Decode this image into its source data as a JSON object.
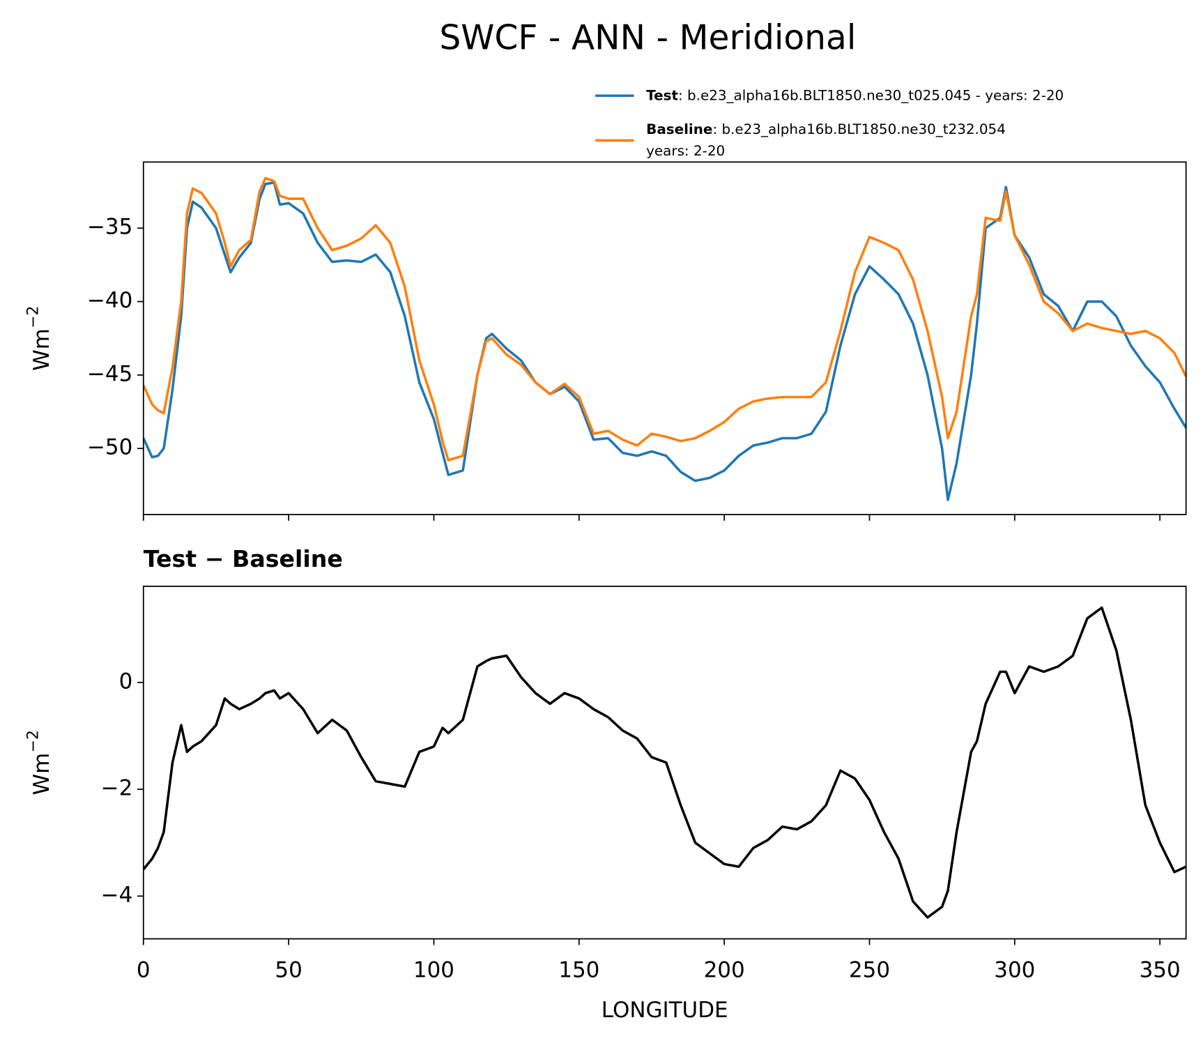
{
  "title": "SWCF - ANN - Meridional",
  "chart_data": [
    {
      "type": "line",
      "ylabel": "Wm",
      "ylabel_sup": "−2",
      "x": [
        0,
        3,
        5,
        7,
        10,
        13,
        15,
        17,
        20,
        25,
        28,
        30,
        33,
        37,
        40,
        42,
        45,
        47,
        50,
        55,
        60,
        65,
        70,
        75,
        80,
        85,
        90,
        95,
        100,
        103,
        105,
        110,
        115,
        118,
        120,
        125,
        130,
        135,
        140,
        145,
        150,
        155,
        160,
        165,
        170,
        175,
        180,
        185,
        190,
        195,
        200,
        205,
        210,
        215,
        220,
        225,
        230,
        235,
        240,
        245,
        250,
        255,
        260,
        265,
        270,
        275,
        277,
        280,
        285,
        287,
        290,
        295,
        297,
        300,
        305,
        310,
        315,
        320,
        325,
        330,
        335,
        340,
        345,
        350,
        355,
        359
      ],
      "xlim": [
        0,
        359
      ],
      "xticks": [
        0,
        50,
        100,
        150,
        200,
        250,
        300,
        350
      ],
      "show_xtick_labels": false,
      "ylim": [
        -54.5,
        -30.5
      ],
      "yticks": [
        {
          "value": -50,
          "label": "−50"
        },
        {
          "value": -45,
          "label": "−45"
        },
        {
          "value": -40,
          "label": "−40"
        },
        {
          "value": -35,
          "label": "−35"
        }
      ],
      "legend": "upper right",
      "series": [
        {
          "name": "Test",
          "description": [
            ": b.e23_alpha16b.BLT1850.ne30_t025.045 - years: 2-20"
          ],
          "color": "#1f77b4",
          "values": [
            -49.3,
            -50.6,
            -50.5,
            -50,
            -46,
            -41,
            -35,
            -33.2,
            -33.6,
            -35,
            -36.8,
            -38,
            -37,
            -36,
            -33,
            -32,
            -31.9,
            -33.4,
            -33.3,
            -34,
            -36,
            -37.3,
            -37.2,
            -37.3,
            -36.8,
            -38,
            -41,
            -45.5,
            -48,
            -50.3,
            -51.8,
            -51.5,
            -45,
            -42.5,
            -42.2,
            -43.2,
            -44,
            -45.5,
            -46.3,
            -45.8,
            -46.8,
            -49.4,
            -49.3,
            -50.3,
            -50.5,
            -50.2,
            -50.5,
            -51.6,
            -52.2,
            -52,
            -51.5,
            -50.5,
            -49.8,
            -49.6,
            -49.3,
            -49.3,
            -49,
            -47.5,
            -43,
            -39.5,
            -37.6,
            -38.5,
            -39.5,
            -41.5,
            -45,
            -50,
            -53.5,
            -51,
            -45,
            -41.5,
            -35,
            -34.3,
            -32.2,
            -35.5,
            -37,
            -39.5,
            -40.3,
            -42,
            -40,
            -40,
            -41,
            -43,
            -44.4,
            -45.5,
            -47.3,
            -48.6
          ]
        },
        {
          "name": "Baseline",
          "description": [
            ": b.e23_alpha16b.BLT1850.ne30_t232.054",
            "years: 2-20"
          ],
          "color": "#ff7f0e",
          "values": [
            -45.7,
            -47,
            -47.4,
            -47.6,
            -44.5,
            -40,
            -34,
            -32.3,
            -32.6,
            -34,
            -36,
            -37.6,
            -36.5,
            -35.8,
            -32.5,
            -31.6,
            -31.8,
            -32.8,
            -33,
            -33,
            -35,
            -36.5,
            -36.2,
            -35.7,
            -34.8,
            -36,
            -39,
            -44,
            -47,
            -49.5,
            -50.8,
            -50.5,
            -45,
            -42.7,
            -42.5,
            -43.6,
            -44.3,
            -45.5,
            -46.3,
            -45.6,
            -46.5,
            -49,
            -48.8,
            -49.4,
            -49.8,
            -49,
            -49.2,
            -49.5,
            -49.3,
            -48.8,
            -48.2,
            -47.3,
            -46.8,
            -46.6,
            -46.5,
            -46.5,
            -46.5,
            -45.5,
            -42,
            -38,
            -35.6,
            -36,
            -36.5,
            -38.5,
            -42,
            -46.5,
            -49.3,
            -47.5,
            -41,
            -39.5,
            -34.3,
            -34.5,
            -32.5,
            -35.5,
            -37.5,
            -40,
            -40.8,
            -42,
            -41.5,
            -41.8,
            -42,
            -42.2,
            -42,
            -42.5,
            -43.5,
            -45.1
          ]
        }
      ]
    },
    {
      "type": "line",
      "title": "Test − Baseline",
      "ylabel": "Wm",
      "ylabel_sup": "−2",
      "xlabel": "LONGITUDE",
      "x": [
        0,
        3,
        5,
        7,
        10,
        13,
        15,
        17,
        20,
        25,
        28,
        30,
        33,
        37,
        40,
        42,
        45,
        47,
        50,
        55,
        60,
        65,
        70,
        75,
        80,
        85,
        90,
        95,
        100,
        103,
        105,
        110,
        115,
        118,
        120,
        125,
        130,
        135,
        140,
        145,
        150,
        155,
        160,
        165,
        170,
        175,
        180,
        185,
        190,
        195,
        200,
        205,
        210,
        215,
        220,
        225,
        230,
        235,
        240,
        245,
        250,
        255,
        260,
        265,
        270,
        275,
        277,
        280,
        285,
        287,
        290,
        295,
        297,
        300,
        305,
        310,
        315,
        320,
        325,
        330,
        335,
        340,
        345,
        350,
        355,
        359
      ],
      "xlim": [
        0,
        359
      ],
      "xticks": [
        0,
        50,
        100,
        150,
        200,
        250,
        300,
        350
      ],
      "show_xtick_labels": true,
      "ylim": [
        -4.8,
        1.8
      ],
      "yticks": [
        {
          "value": -4,
          "label": "−4"
        },
        {
          "value": -2,
          "label": "−2"
        },
        0
      ],
      "series": [
        {
          "color": "#000000",
          "values": [
            -3.5,
            -3.3,
            -3.1,
            -2.8,
            -1.5,
            -0.8,
            -1.3,
            -1.2,
            -1.1,
            -0.8,
            -0.3,
            -0.4,
            -0.5,
            -0.4,
            -0.3,
            -0.2,
            -0.15,
            -0.3,
            -0.2,
            -0.5,
            -0.95,
            -0.7,
            -0.9,
            -1.4,
            -1.85,
            -1.9,
            -1.95,
            -1.3,
            -1.2,
            -0.85,
            -0.95,
            -0.7,
            0.3,
            0.4,
            0.45,
            0.5,
            0.1,
            -0.2,
            -0.4,
            -0.2,
            -0.3,
            -0.5,
            -0.65,
            -0.9,
            -1.05,
            -1.4,
            -1.5,
            -2.3,
            -3.0,
            -3.2,
            -3.4,
            -3.45,
            -3.1,
            -2.95,
            -2.7,
            -2.75,
            -2.6,
            -2.3,
            -1.65,
            -1.8,
            -2.2,
            -2.8,
            -3.3,
            -4.1,
            -4.4,
            -4.2,
            -3.9,
            -2.8,
            -1.3,
            -1.1,
            -0.4,
            0.2,
            0.2,
            -0.2,
            0.3,
            0.2,
            0.3,
            0.5,
            1.2,
            1.4,
            0.6,
            -0.7,
            -2.3,
            -3.0,
            -3.55,
            -3.45
          ]
        }
      ]
    }
  ]
}
